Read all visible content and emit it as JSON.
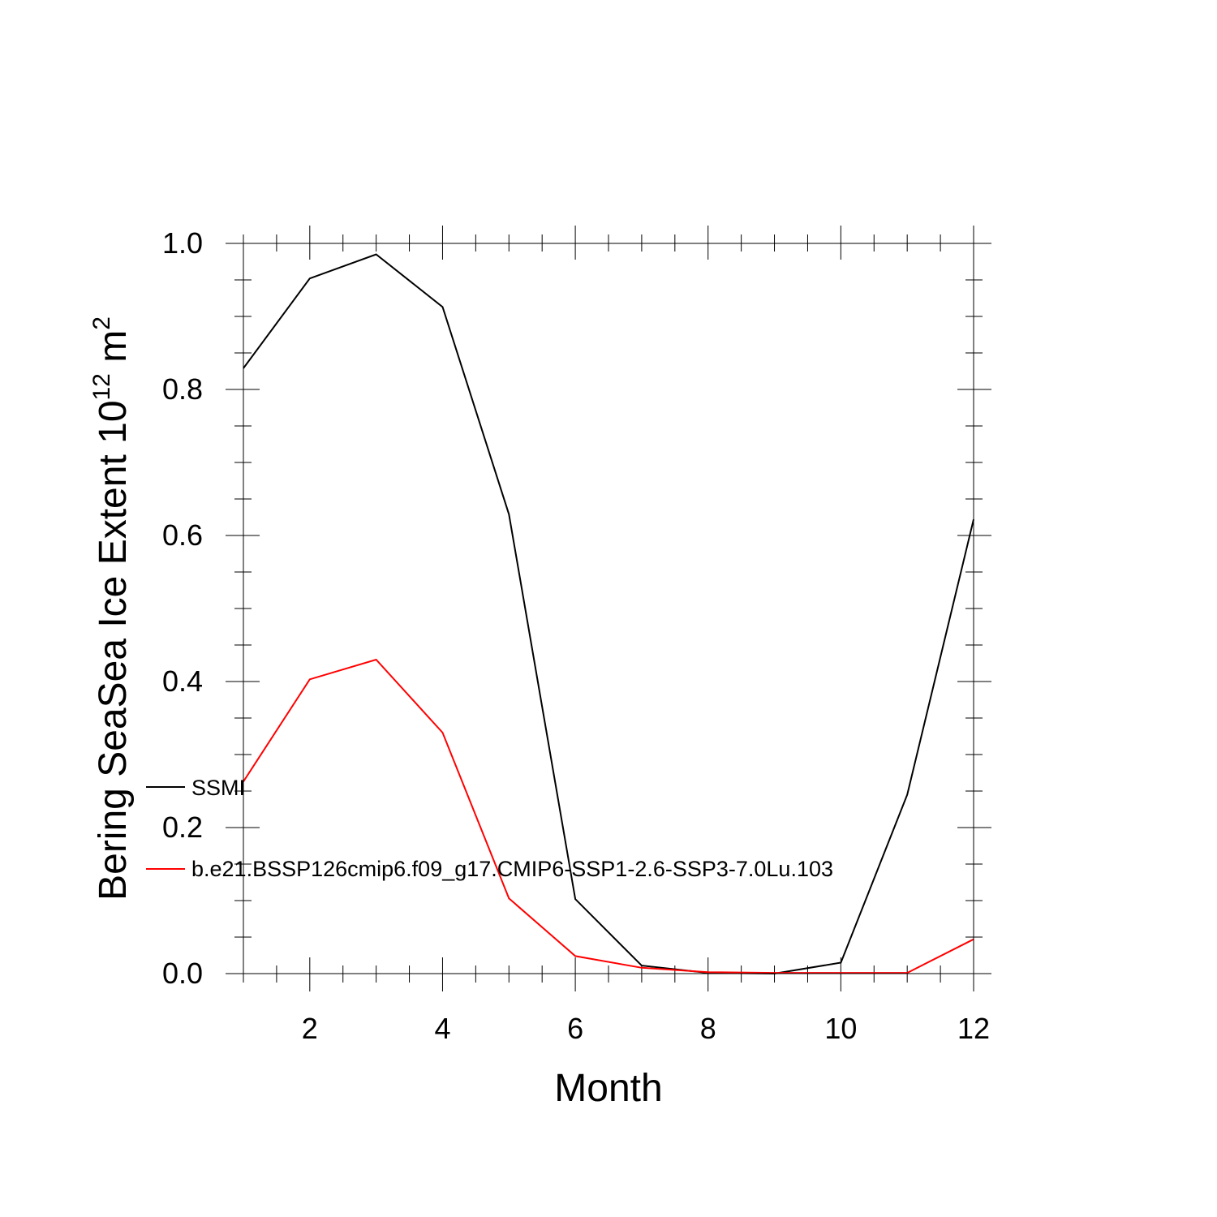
{
  "chart_data": {
    "type": "line",
    "title": "",
    "xlabel": "Month",
    "ylabel": {
      "prefix": "Bering SeaSea Ice Extent 10",
      "exponent": "12",
      "middle": " m",
      "unit_exponent": "2"
    },
    "xlim": [
      1,
      12
    ],
    "ylim": [
      0,
      1
    ],
    "x_ticks": [
      2,
      4,
      6,
      8,
      10,
      12
    ],
    "y_ticks": [
      "0.0",
      "0.2",
      "0.4",
      "0.6",
      "0.8",
      "1.0"
    ],
    "x": [
      1,
      2,
      3,
      4,
      5,
      6,
      7,
      8,
      9,
      10,
      11,
      12
    ],
    "series": [
      {
        "name": "SSMI",
        "color": "#000000",
        "values": [
          0.829,
          0.952,
          0.985,
          0.913,
          0.629,
          0.102,
          0.011,
          0.001,
          0.0,
          0.015,
          0.245,
          0.622
        ]
      },
      {
        "name": "b.e21.BSSP126cmip6.f09_g17.CMIP6-SSP1-2.6-SSP3-7.0Lu.103",
        "color": "#ff0000",
        "values": [
          0.263,
          0.403,
          0.43,
          0.33,
          0.103,
          0.024,
          0.008,
          0.002,
          0.001,
          0.001,
          0.001,
          0.047
        ]
      }
    ],
    "legend_position": "lower-left inside plot"
  }
}
